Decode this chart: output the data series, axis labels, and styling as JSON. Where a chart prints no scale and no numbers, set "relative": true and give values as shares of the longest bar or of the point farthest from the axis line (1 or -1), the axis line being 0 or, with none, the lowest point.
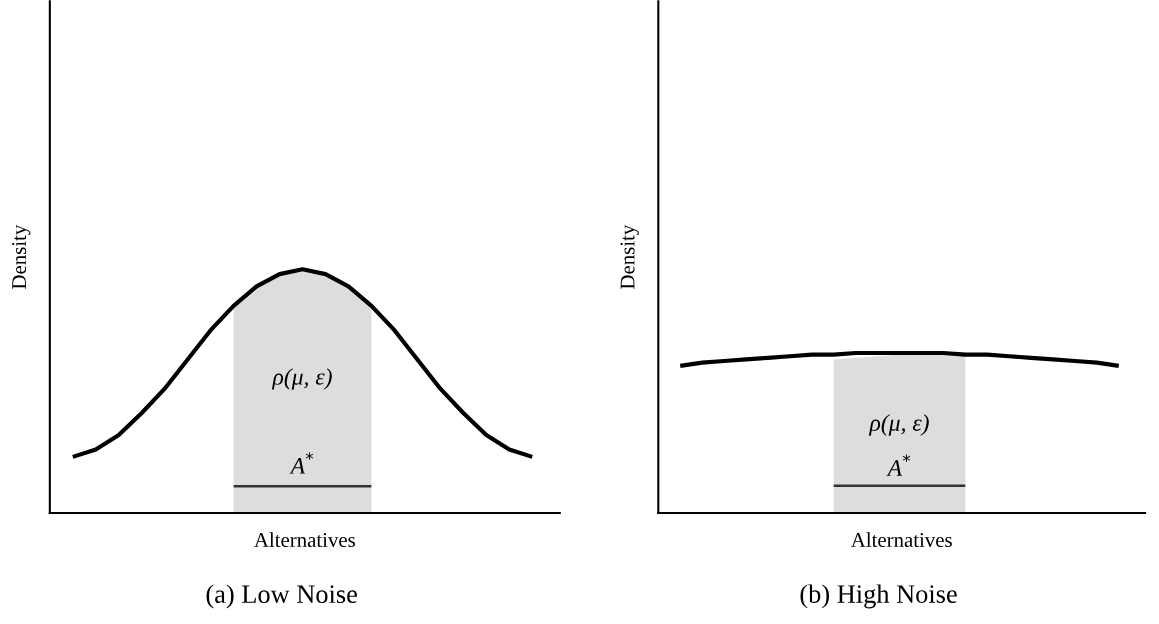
{
  "chart_data": [
    {
      "type": "line",
      "relative": true,
      "ylabel": "Density",
      "xlabel": "Alternatives",
      "annotations": [
        "(a) Low Noise"
      ],
      "categories": [
        null,
        null,
        null,
        null,
        null,
        null,
        null,
        null,
        null,
        null,
        null,
        null,
        null,
        null,
        null,
        null,
        null,
        null,
        null,
        null,
        null
      ],
      "series": [
        {
          "type": "area",
          "name": "ρ(μ, ε)",
          "color": "#dddddd",
          "values": [
            null,
            null,
            null,
            null,
            null,
            null,
            null,
            0.85,
            0.93,
            0.98,
            1.0,
            0.98,
            0.93,
            0.85,
            null,
            null,
            null,
            null,
            null,
            null,
            null
          ]
        },
        {
          "color": "#000000",
          "values": [
            0.23,
            0.26,
            0.32,
            0.41,
            0.51,
            0.63,
            0.75,
            0.85,
            0.93,
            0.98,
            1.0,
            0.98,
            0.93,
            0.85,
            0.75,
            0.63,
            0.51,
            0.41,
            0.32,
            0.26,
            0.23
          ]
        },
        {
          "type": "line",
          "name": "A$^{*}$",
          "color": "#333333",
          "values": [
            null,
            null,
            null,
            null,
            null,
            null,
            null,
            0.11,
            0.11,
            0.11,
            0.11,
            0.11,
            0.11,
            0.11,
            null,
            null,
            null,
            null,
            null,
            null,
            null
          ]
        }
      ]
    },
    {
      "type": "line",
      "relative": true,
      "ylabel": "Density",
      "xlabel": "Alternatives",
      "annotations": [
        "(b) High Noise"
      ],
      "categories": [
        null,
        null,
        null,
        null,
        null,
        null,
        null,
        null,
        null,
        null,
        null,
        null,
        null,
        null,
        null,
        null,
        null,
        null,
        null,
        null,
        null
      ],
      "series": [
        {
          "type": "area",
          "name": "ρ(μ, ε)",
          "color": "#dddddd",
          "values": [
            null,
            null,
            null,
            null,
            null,
            null,
            null,
            0.96,
            0.97,
            0.98,
            0.99,
            0.99,
            1.0,
            1.0,
            null,
            null,
            null,
            null,
            null,
            null,
            null
          ]
        },
        {
          "color": "#000000",
          "values": [
            0.92,
            0.94,
            0.95,
            0.96,
            0.97,
            0.98,
            0.99,
            0.99,
            1.0,
            1.0,
            1.0,
            1.0,
            1.0,
            0.99,
            0.99,
            0.98,
            0.97,
            0.96,
            0.95,
            0.94,
            0.92
          ]
        },
        {
          "type": "line",
          "name": "A$^{*}$",
          "color": "#333333",
          "values": [
            null,
            null,
            null,
            null,
            null,
            null,
            null,
            0.17,
            0.17,
            0.17,
            0.17,
            0.17,
            0.17,
            0.17,
            null,
            null,
            null,
            null,
            null,
            null,
            null
          ]
        }
      ]
    }
  ]
}
